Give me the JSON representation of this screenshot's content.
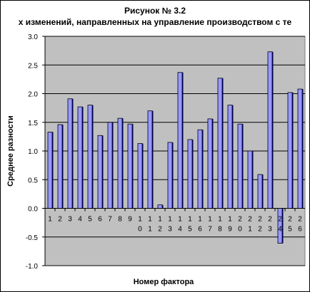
{
  "chart_data": {
    "type": "bar",
    "title": "Рисунок № 3.2",
    "subtitle": "х изменений, направленных на управление производством с те",
    "xlabel": "Номер фактора",
    "ylabel": "Среднее разности",
    "ylim": [
      -1.0,
      3.0
    ],
    "yticks": [
      "3.0",
      "2.5",
      "2.0",
      "1.5",
      "1.0",
      "0.5",
      "0.0",
      "-0.5",
      "-1.0"
    ],
    "grid": true,
    "categories": [
      "1",
      "2",
      "3",
      "4",
      "5",
      "6",
      "7",
      "8",
      "9",
      "10",
      "11",
      "12",
      "13",
      "14",
      "15",
      "16",
      "17",
      "18",
      "19",
      "20",
      "21",
      "22",
      "23",
      "24",
      "25",
      "26"
    ],
    "values": [
      1.33,
      1.46,
      1.91,
      1.77,
      1.8,
      1.27,
      1.5,
      1.57,
      1.47,
      1.13,
      1.7,
      0.06,
      1.15,
      2.37,
      1.2,
      1.37,
      1.56,
      2.27,
      1.8,
      1.47,
      1.0,
      0.59,
      2.73,
      -0.61,
      2.02,
      2.08
    ],
    "colors": {
      "plot_bg": "#c0c0c0",
      "bar_fill": "#9999ff",
      "bar_shadow": "#000080",
      "grid": "#000000"
    }
  }
}
